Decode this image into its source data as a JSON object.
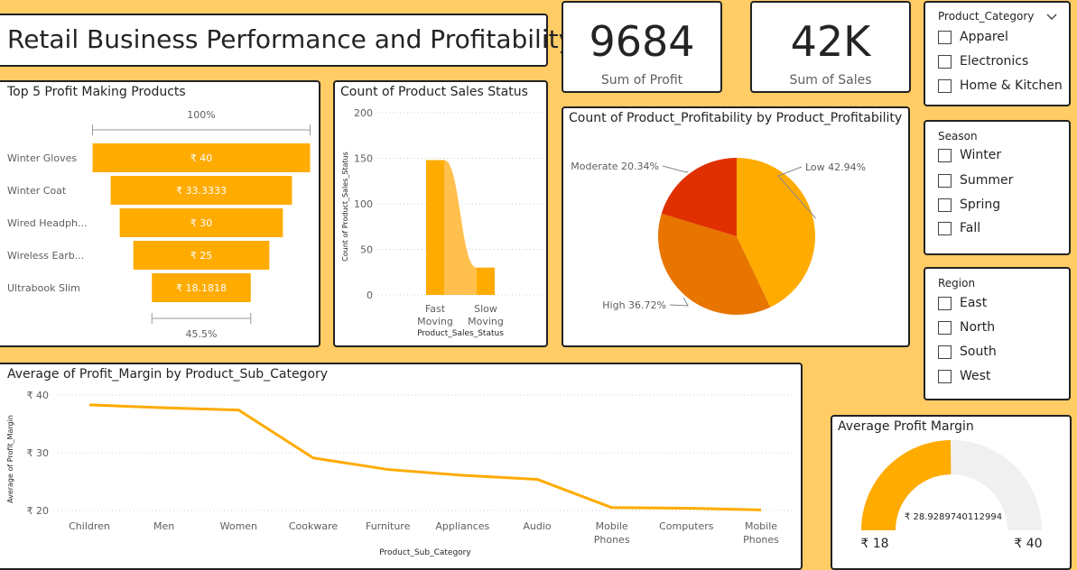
{
  "title": "Retail Business Performance and Profitability",
  "kpis": [
    {
      "value": "9684",
      "label": "Sum of Profit"
    },
    {
      "value": "42K",
      "label": "Sum of Sales"
    }
  ],
  "slicers": [
    {
      "title": "Product_Category",
      "options": [
        "Apparel",
        "Electronics",
        "Home & Kitchen"
      ]
    },
    {
      "title": "Season",
      "options": [
        "Winter",
        "Summer",
        "Spring",
        "Fall"
      ]
    },
    {
      "title": "Region",
      "options": [
        "East",
        "North",
        "South",
        "West"
      ]
    }
  ],
  "colors": {
    "primary": "#FFAB00",
    "light": "#FFC04D",
    "dark_orange": "#E87500",
    "red": "#E03000",
    "background": "#FFCC66"
  },
  "chart_data": [
    {
      "type": "bar",
      "subtype": "funnel",
      "title": "Top 5 Profit Making Products",
      "categories": [
        "Winter Gloves",
        "Winter Coat",
        "Wired Headph...",
        "Wireless Earb...",
        "Ultrabook Slim"
      ],
      "values": [
        40,
        33.3333,
        30,
        25,
        18.1818
      ],
      "data_labels": [
        "₹ 40",
        "₹ 33.3333",
        "₹ 30",
        "₹ 25",
        "₹ 18.1818"
      ],
      "top_percent": "100%",
      "bottom_percent": "45.5%"
    },
    {
      "type": "bar",
      "subtype": "ribbon",
      "title": "Count of Product Sales Status",
      "categories": [
        "Fast Moving",
        "Slow Moving"
      ],
      "values": [
        148,
        30
      ],
      "xlabel": "Product_Sales_Status",
      "ylabel": "Count of Product_Sales_Status",
      "ylim": [
        0,
        200
      ],
      "yticks": [
        "0",
        "50",
        "100",
        "150",
        "200"
      ]
    },
    {
      "type": "pie",
      "title": "Count of Product_Profitability by Product_Profitability",
      "slices": [
        {
          "label": "Low 42.94%",
          "value": 42.94
        },
        {
          "label": "High 36.72%",
          "value": 36.72
        },
        {
          "label": "Moderate 20.34%",
          "value": 20.34
        }
      ]
    },
    {
      "type": "line",
      "title": "Average of Profit_Margin by Product_Sub_Category",
      "categories": [
        "Children",
        "Men",
        "Women",
        "Cookware",
        "Furniture",
        "Appliances",
        "Audio",
        "Mobile Phones",
        "Computers",
        "Mobile Phones"
      ],
      "values": [
        38.3,
        37.8,
        37.4,
        29.1,
        27.1,
        26.1,
        25.4,
        20.5,
        20.4,
        20.1
      ],
      "xlabel": "Product_Sub_Category",
      "ylabel": "Average of Profit_Margin",
      "ylim": [
        20,
        40
      ],
      "yticks": [
        "₹ 20",
        "₹ 30",
        "₹ 40"
      ]
    },
    {
      "type": "gauge",
      "title": "Average Profit Margin",
      "value": 28.9289740112994,
      "value_label": "₹ 28.9289740112994​",
      "min": 18,
      "max": 40,
      "min_label": "₹ 18",
      "max_label": "₹ 40"
    }
  ]
}
